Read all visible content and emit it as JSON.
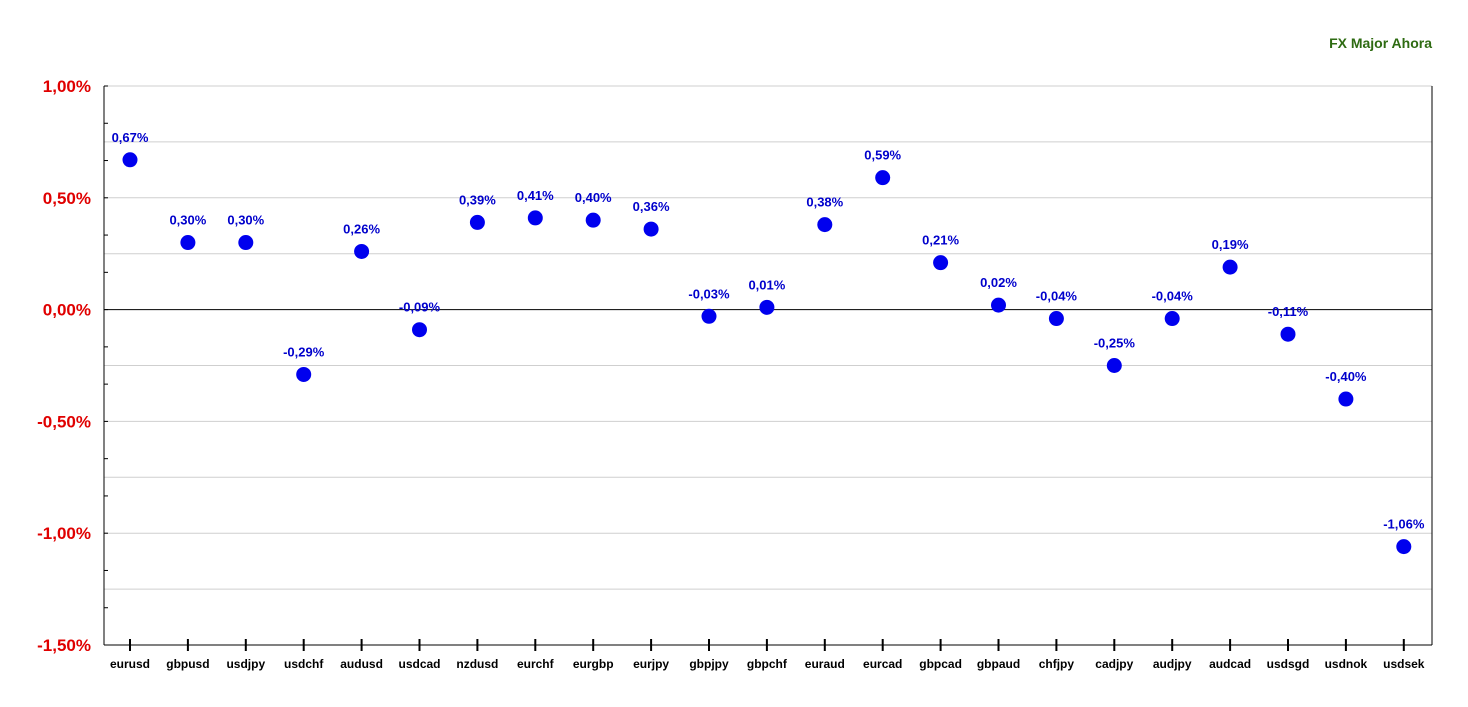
{
  "chart_data": {
    "type": "scatter",
    "title": "",
    "xlabel": "",
    "ylabel": "",
    "legend": {
      "label": "FX Major Ahora",
      "placement": "top-right",
      "color": "#2e6b12"
    },
    "ylim": [
      -1.5,
      1.0
    ],
    "yticks": [
      1.0,
      0.5,
      0.0,
      -0.5,
      -1.0,
      -1.5
    ],
    "ytick_labels": [
      "1,00%",
      "0,50%",
      "0,00%",
      "-0,50%",
      "-1,00%",
      "-1,50%"
    ],
    "grid": true,
    "categories": [
      "eurusd",
      "gbpusd",
      "usdjpy",
      "usdchf",
      "audusd",
      "usdcad",
      "nzdusd",
      "eurchf",
      "eurgbp",
      "eurjpy",
      "gbpjpy",
      "gbpchf",
      "euraud",
      "eurcad",
      "gbpcad",
      "gbpaud",
      "chfjpy",
      "cadjpy",
      "audjpy",
      "audcad",
      "usdsgd",
      "usdnok",
      "usdsek"
    ],
    "values": [
      0.67,
      0.3,
      0.3,
      -0.29,
      0.26,
      -0.09,
      0.39,
      0.41,
      0.4,
      0.36,
      -0.03,
      0.01,
      0.38,
      0.59,
      0.21,
      0.02,
      -0.04,
      -0.25,
      -0.04,
      0.19,
      -0.11,
      -0.4,
      -1.06
    ],
    "data_labels": [
      "0,67%",
      "0,30%",
      "0,30%",
      "-0,29%",
      "0,26%",
      "-0,09%",
      "0,39%",
      "0,41%",
      "0,40%",
      "0,36%",
      "-0,03%",
      "0,01%",
      "0,38%",
      "0,59%",
      "0,21%",
      "0,02%",
      "-0,04%",
      "-0,25%",
      "-0,04%",
      "0,19%",
      "-0,11%",
      "-0,40%",
      "-1,06%"
    ],
    "colors": {
      "point": "#0000ee",
      "data_label": "#0000cc",
      "ytick_label": "#e00000",
      "grid": "#cfcfcf",
      "axis": "#000000"
    }
  }
}
